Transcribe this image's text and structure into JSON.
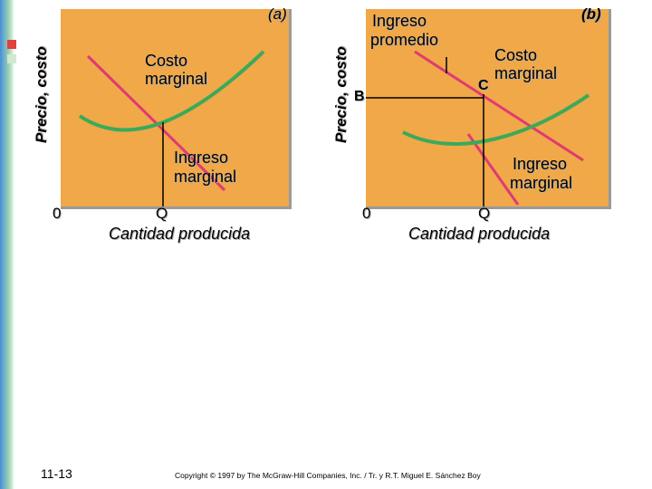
{
  "slide": {
    "page_number": "11-13",
    "copyright": "Copyright © 1997 by The McGraw-Hill Companies, Inc. / Tr. y R.T. Miguel E. Sánchez Boy"
  },
  "colors": {
    "panel": "#f0a848",
    "cost_curve": "#3aaa5a",
    "revenue_line": "#e03a72",
    "axis": "#000000"
  },
  "panel_a": {
    "tag": "(a)",
    "y_axis_label": "Precio, costo",
    "x_axis_label": "Cantidad producida",
    "origin_label": "0",
    "q_label": "Q",
    "mc_label_1": "Costo",
    "mc_label_2": "marginal",
    "mr_label_1": "Ingreso",
    "mr_label_2": "marginal"
  },
  "panel_b": {
    "tag": "(b)",
    "y_axis_label": "Precio, costo",
    "x_axis_label": "Cantidad producida",
    "origin_label": "0",
    "q_label": "Q",
    "ar_label_1": "Ingreso",
    "ar_label_2": "promedio",
    "mc_label_1": "Costo",
    "mc_label_2": "marginal",
    "mr_label_1": "Ingreso",
    "mr_label_2": "marginal",
    "point_b": "B",
    "point_c": "C"
  }
}
